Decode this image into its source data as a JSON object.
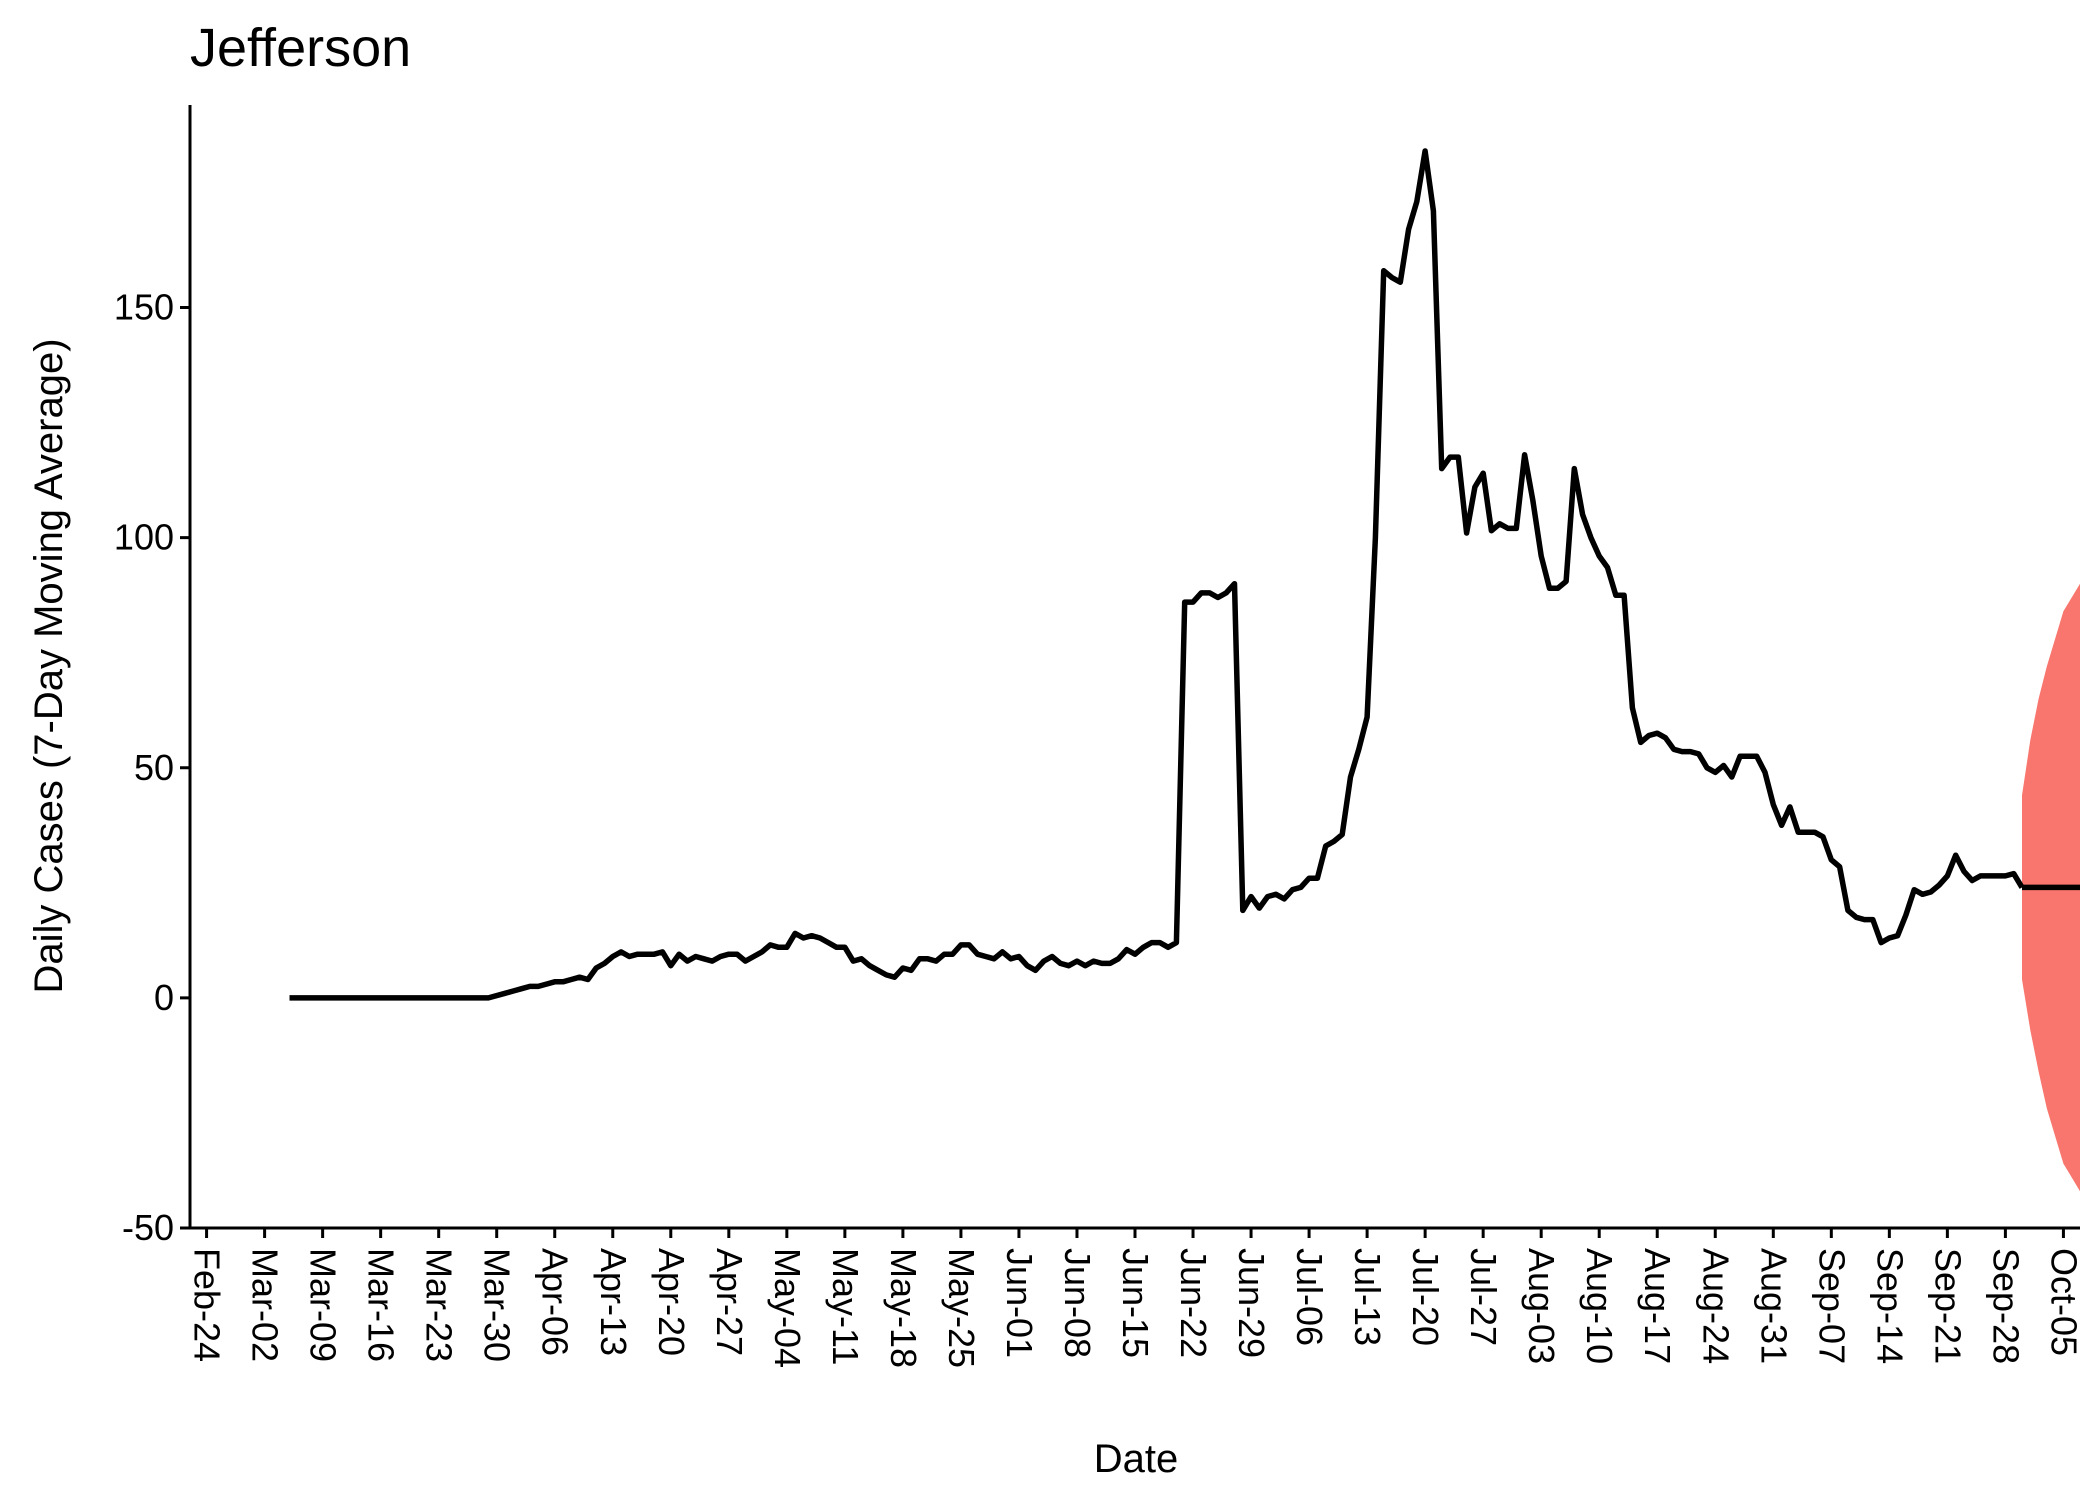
{
  "chart_data": {
    "type": "line",
    "title": "Jefferson",
    "xlabel": "Date",
    "ylabel": "Daily Cases (7-Day Moving Average)",
    "xlim": [
      "2020-02-22",
      "2020-10-07"
    ],
    "ylim": [
      -50,
      194
    ],
    "y_ticks": [
      -50,
      0,
      50,
      100,
      150
    ],
    "x_tick_labels": [
      "Feb-24",
      "Mar-02",
      "Mar-09",
      "Mar-16",
      "Mar-23",
      "Mar-30",
      "Apr-06",
      "Apr-13",
      "Apr-20",
      "Apr-27",
      "May-04",
      "May-11",
      "May-18",
      "May-25",
      "Jun-01",
      "Jun-08",
      "Jun-15",
      "Jun-22",
      "Jun-29",
      "Jul-06",
      "Jul-13",
      "Jul-20",
      "Jul-27",
      "Aug-03",
      "Aug-10",
      "Aug-17",
      "Aug-24",
      "Aug-31",
      "Sep-07",
      "Sep-14",
      "Sep-21",
      "Sep-28",
      "Oct-05"
    ],
    "x_tick_dates": [
      "2020-02-24",
      "2020-03-02",
      "2020-03-09",
      "2020-03-16",
      "2020-03-23",
      "2020-03-30",
      "2020-04-06",
      "2020-04-13",
      "2020-04-20",
      "2020-04-27",
      "2020-05-04",
      "2020-05-11",
      "2020-05-18",
      "2020-05-25",
      "2020-06-01",
      "2020-06-08",
      "2020-06-15",
      "2020-06-22",
      "2020-06-29",
      "2020-07-06",
      "2020-07-13",
      "2020-07-20",
      "2020-07-27",
      "2020-08-03",
      "2020-08-10",
      "2020-08-17",
      "2020-08-24",
      "2020-08-31",
      "2020-09-07",
      "2020-09-14",
      "2020-09-21",
      "2020-09-28",
      "2020-10-05"
    ],
    "grid": false,
    "legend": "none",
    "series": [
      {
        "color": "#000000",
        "points": [
          [
            "2020-03-05",
            0
          ],
          [
            "2020-03-12",
            0
          ],
          [
            "2020-03-19",
            0
          ],
          [
            "2020-03-26",
            0
          ],
          [
            "2020-03-29",
            0
          ],
          [
            "2020-03-31",
            1
          ],
          [
            "2020-04-01",
            1.5
          ],
          [
            "2020-04-02",
            2
          ],
          [
            "2020-04-03",
            2.5
          ],
          [
            "2020-04-04",
            2.5
          ],
          [
            "2020-04-05",
            3
          ],
          [
            "2020-04-06",
            3.5
          ],
          [
            "2020-04-07",
            3.5
          ],
          [
            "2020-04-08",
            4
          ],
          [
            "2020-04-09",
            4.5
          ],
          [
            "2020-04-10",
            4
          ],
          [
            "2020-04-11",
            6.5
          ],
          [
            "2020-04-12",
            7.5
          ],
          [
            "2020-04-13",
            9
          ],
          [
            "2020-04-14",
            10
          ],
          [
            "2020-04-15",
            9
          ],
          [
            "2020-04-16",
            9.5
          ],
          [
            "2020-04-17",
            9.5
          ],
          [
            "2020-04-18",
            9.5
          ],
          [
            "2020-04-19",
            10
          ],
          [
            "2020-04-20",
            7
          ],
          [
            "2020-04-21",
            9.5
          ],
          [
            "2020-04-22",
            8
          ],
          [
            "2020-04-23",
            9
          ],
          [
            "2020-04-24",
            8.5
          ],
          [
            "2020-04-25",
            8
          ],
          [
            "2020-04-26",
            9
          ],
          [
            "2020-04-27",
            9.5
          ],
          [
            "2020-04-28",
            9.5
          ],
          [
            "2020-04-29",
            8
          ],
          [
            "2020-04-30",
            9
          ],
          [
            "2020-05-01",
            10
          ],
          [
            "2020-05-02",
            11.5
          ],
          [
            "2020-05-03",
            11
          ],
          [
            "2020-05-04",
            11
          ],
          [
            "2020-05-05",
            14
          ],
          [
            "2020-05-06",
            13
          ],
          [
            "2020-05-07",
            13.5
          ],
          [
            "2020-05-08",
            13
          ],
          [
            "2020-05-09",
            12
          ],
          [
            "2020-05-10",
            11
          ],
          [
            "2020-05-11",
            11
          ],
          [
            "2020-05-12",
            8
          ],
          [
            "2020-05-13",
            8.5
          ],
          [
            "2020-05-14",
            7
          ],
          [
            "2020-05-15",
            6
          ],
          [
            "2020-05-16",
            5
          ],
          [
            "2020-05-17",
            4.5
          ],
          [
            "2020-05-18",
            6.5
          ],
          [
            "2020-05-19",
            6
          ],
          [
            "2020-05-20",
            8.5
          ],
          [
            "2020-05-21",
            8.5
          ],
          [
            "2020-05-22",
            8
          ],
          [
            "2020-05-23",
            9.5
          ],
          [
            "2020-05-24",
            9.5
          ],
          [
            "2020-05-25",
            11.5
          ],
          [
            "2020-05-26",
            11.5
          ],
          [
            "2020-05-27",
            9.5
          ],
          [
            "2020-05-28",
            9
          ],
          [
            "2020-05-29",
            8.5
          ],
          [
            "2020-05-30",
            10
          ],
          [
            "2020-05-31",
            8.5
          ],
          [
            "2020-06-01",
            9
          ],
          [
            "2020-06-02",
            7
          ],
          [
            "2020-06-03",
            6
          ],
          [
            "2020-06-04",
            8
          ],
          [
            "2020-06-05",
            9
          ],
          [
            "2020-06-06",
            7.5
          ],
          [
            "2020-06-07",
            7
          ],
          [
            "2020-06-08",
            8
          ],
          [
            "2020-06-09",
            7
          ],
          [
            "2020-06-10",
            8
          ],
          [
            "2020-06-11",
            7.5
          ],
          [
            "2020-06-12",
            7.5
          ],
          [
            "2020-06-13",
            8.5
          ],
          [
            "2020-06-14",
            10.5
          ],
          [
            "2020-06-15",
            9.5
          ],
          [
            "2020-06-16",
            11
          ],
          [
            "2020-06-17",
            12
          ],
          [
            "2020-06-18",
            12
          ],
          [
            "2020-06-19",
            11
          ],
          [
            "2020-06-20",
            12
          ],
          [
            "2020-06-21",
            86
          ],
          [
            "2020-06-22",
            86
          ],
          [
            "2020-06-23",
            88
          ],
          [
            "2020-06-24",
            88
          ],
          [
            "2020-06-25",
            87
          ],
          [
            "2020-06-26",
            88
          ],
          [
            "2020-06-27",
            90
          ],
          [
            "2020-06-28",
            19
          ],
          [
            "2020-06-29",
            22
          ],
          [
            "2020-06-30",
            19.5
          ],
          [
            "2020-07-01",
            22
          ],
          [
            "2020-07-02",
            22.5
          ],
          [
            "2020-07-03",
            21.5
          ],
          [
            "2020-07-04",
            23.5
          ],
          [
            "2020-07-05",
            24
          ],
          [
            "2020-07-06",
            26
          ],
          [
            "2020-07-07",
            26
          ],
          [
            "2020-07-08",
            33
          ],
          [
            "2020-07-09",
            34
          ],
          [
            "2020-07-10",
            35.5
          ],
          [
            "2020-07-11",
            48
          ],
          [
            "2020-07-12",
            54
          ],
          [
            "2020-07-13",
            61
          ],
          [
            "2020-07-14",
            100
          ],
          [
            "2020-07-15",
            158
          ],
          [
            "2020-07-16",
            156.5
          ],
          [
            "2020-07-17",
            155.5
          ],
          [
            "2020-07-18",
            167
          ],
          [
            "2020-07-19",
            173
          ],
          [
            "2020-07-20",
            184
          ],
          [
            "2020-07-21",
            171
          ],
          [
            "2020-07-22",
            115
          ],
          [
            "2020-07-23",
            117.5
          ],
          [
            "2020-07-24",
            117.5
          ],
          [
            "2020-07-25",
            101
          ],
          [
            "2020-07-26",
            111
          ],
          [
            "2020-07-27",
            114
          ],
          [
            "2020-07-28",
            101.5
          ],
          [
            "2020-07-29",
            103
          ],
          [
            "2020-07-30",
            102
          ],
          [
            "2020-07-31",
            102
          ],
          [
            "2020-08-01",
            118
          ],
          [
            "2020-08-02",
            108
          ],
          [
            "2020-08-03",
            96
          ],
          [
            "2020-08-04",
            89
          ],
          [
            "2020-08-05",
            89
          ],
          [
            "2020-08-06",
            90.5
          ],
          [
            "2020-08-07",
            115
          ],
          [
            "2020-08-08",
            105
          ],
          [
            "2020-08-09",
            100
          ],
          [
            "2020-08-10",
            96
          ],
          [
            "2020-08-11",
            93.5
          ],
          [
            "2020-08-12",
            87.5
          ],
          [
            "2020-08-13",
            87.5
          ],
          [
            "2020-08-14",
            63
          ],
          [
            "2020-08-15",
            55.5
          ],
          [
            "2020-08-16",
            57
          ],
          [
            "2020-08-17",
            57.5
          ],
          [
            "2020-08-18",
            56.5
          ],
          [
            "2020-08-19",
            54
          ],
          [
            "2020-08-20",
            53.5
          ],
          [
            "2020-08-21",
            53.5
          ],
          [
            "2020-08-22",
            53
          ],
          [
            "2020-08-23",
            50
          ],
          [
            "2020-08-24",
            49
          ],
          [
            "2020-08-25",
            50.5
          ],
          [
            "2020-08-26",
            48
          ],
          [
            "2020-08-27",
            52.5
          ],
          [
            "2020-08-28",
            52.5
          ],
          [
            "2020-08-29",
            52.5
          ],
          [
            "2020-08-30",
            49
          ],
          [
            "2020-08-31",
            42
          ],
          [
            "2020-09-01",
            37.5
          ],
          [
            "2020-09-02",
            41.5
          ],
          [
            "2020-09-03",
            36
          ],
          [
            "2020-09-04",
            36
          ],
          [
            "2020-09-05",
            36
          ],
          [
            "2020-09-06",
            35
          ],
          [
            "2020-09-07",
            30
          ],
          [
            "2020-09-08",
            28.5
          ],
          [
            "2020-09-09",
            19
          ],
          [
            "2020-09-10",
            17.5
          ],
          [
            "2020-09-11",
            17
          ],
          [
            "2020-09-12",
            17
          ],
          [
            "2020-09-13",
            12
          ],
          [
            "2020-09-14",
            13
          ],
          [
            "2020-09-15",
            13.5
          ],
          [
            "2020-09-16",
            18
          ],
          [
            "2020-09-17",
            23.5
          ],
          [
            "2020-09-18",
            22.5
          ],
          [
            "2020-09-19",
            23
          ],
          [
            "2020-09-20",
            24.5
          ],
          [
            "2020-09-21",
            26.5
          ],
          [
            "2020-09-22",
            31
          ],
          [
            "2020-09-23",
            27.5
          ],
          [
            "2020-09-24",
            25.5
          ],
          [
            "2020-09-25",
            26.5
          ],
          [
            "2020-09-26",
            26.5
          ],
          [
            "2020-09-27",
            26.5
          ],
          [
            "2020-09-28",
            26.5
          ],
          [
            "2020-09-29",
            27
          ],
          [
            "2020-09-30",
            24
          ]
        ]
      },
      {
        "color": "#000000",
        "points": [
          [
            "2020-09-30",
            24
          ],
          [
            "2020-10-07",
            24
          ]
        ]
      }
    ],
    "band": {
      "color": "#f8766d",
      "points": [
        [
          "2020-09-30",
          4,
          44
        ],
        [
          "2020-10-01",
          -7,
          56
        ],
        [
          "2020-10-02",
          -16,
          65
        ],
        [
          "2020-10-03",
          -24,
          72
        ],
        [
          "2020-10-04",
          -30,
          78
        ],
        [
          "2020-10-05",
          -36,
          84
        ],
        [
          "2020-10-06",
          -39,
          87
        ],
        [
          "2020-10-07",
          -42,
          90
        ]
      ]
    }
  }
}
